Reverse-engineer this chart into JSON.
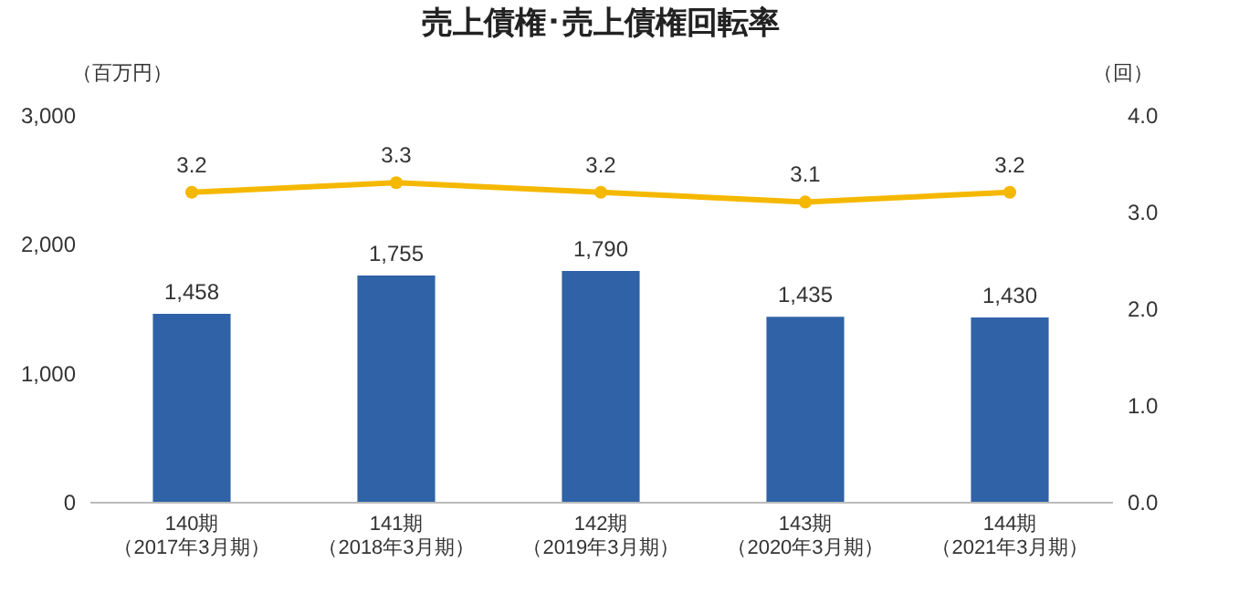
{
  "chart_data": {
    "type": "bar",
    "title": "売上債権･売上債権回転率",
    "ylabel": "（百万円）",
    "y2label": "（回）",
    "categories": [
      "140期（2017年3月期）",
      "141期（2018年3月期）",
      "142期（2019年3月期）",
      "143期（2020年3月期）",
      "144期（2021年3月期）"
    ],
    "series": [
      {
        "color": "#2f62a6",
        "values": [
          1458,
          1755,
          1790,
          1435,
          1430
        ],
        "value_labels": [
          "1,458",
          "1,755",
          "1,790",
          "1,435",
          "1,430"
        ]
      },
      {
        "type": "line",
        "color": "#f5b800",
        "axis": "y2",
        "values": [
          3.2,
          3.3,
          3.2,
          3.1,
          3.2
        ]
      }
    ],
    "ylim": [
      0,
      3000
    ],
    "yticks": [
      {
        "value": 0,
        "label": "0"
      },
      {
        "value": 1000,
        "label": "1,000"
      },
      {
        "value": 2000,
        "label": "2,000"
      },
      {
        "value": 3000,
        "label": "3,000"
      }
    ],
    "y2lim": [
      0,
      4
    ],
    "y2ticks": [
      {
        "value": 0,
        "label": "0.0"
      },
      {
        "value": 1,
        "label": "1.0"
      },
      {
        "value": 2,
        "label": "2.0"
      },
      {
        "value": 3,
        "label": "3.0"
      },
      {
        "value": 4,
        "label": "4.0"
      }
    ],
    "data_labels": true,
    "marker": "circle",
    "line_style": "solid"
  }
}
